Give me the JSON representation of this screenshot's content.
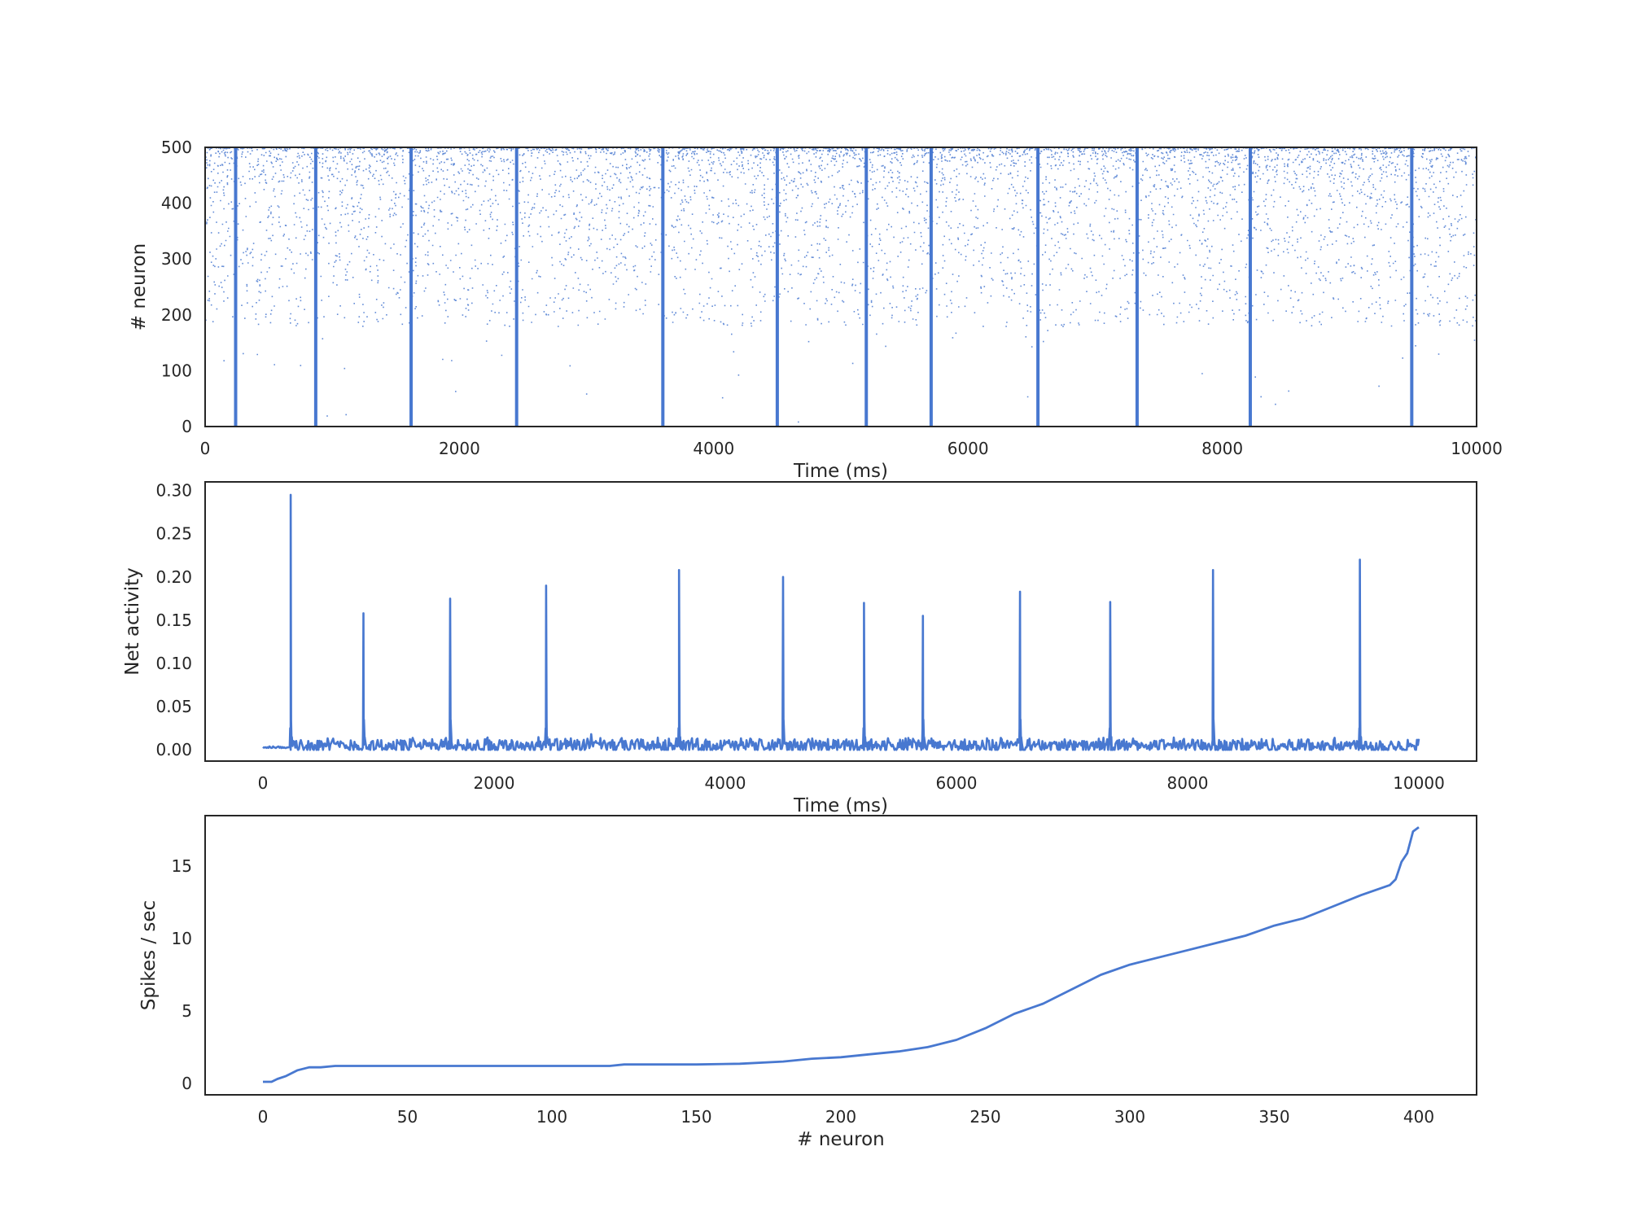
{
  "chart_data": [
    {
      "type": "scatter",
      "xlabel": "Time (ms)",
      "ylabel": "# neuron",
      "xlim": [
        0,
        10000
      ],
      "ylim": [
        0,
        500
      ],
      "xticks": [
        0,
        2000,
        4000,
        6000,
        8000,
        10000
      ],
      "yticks": [
        0,
        100,
        200,
        300,
        400,
        500
      ],
      "grid": false,
      "color": "#4878d0",
      "burst_times": [
        240,
        870,
        1620,
        2450,
        3600,
        4500,
        5200,
        5710,
        6550,
        7330,
        8220,
        9490
      ],
      "description_points": "spike raster: sparse tonic firing concentrated in neurons 200-500, with population bursts across all neurons at burst_times"
    },
    {
      "type": "line",
      "xlabel": "Time (ms)",
      "ylabel": "Net activity",
      "xlim": [
        -500,
        10500
      ],
      "ylim": [
        -0.013,
        0.31
      ],
      "xticks": [
        0,
        2000,
        4000,
        6000,
        8000,
        10000
      ],
      "yticks": [
        0.0,
        0.05,
        0.1,
        0.15,
        0.2,
        0.25,
        0.3
      ],
      "ytick_labels": [
        "0.00",
        "0.05",
        "0.10",
        "0.15",
        "0.20",
        "0.25",
        "0.30"
      ],
      "grid": false,
      "color": "#4878d0",
      "baseline": 0.005,
      "peaks": [
        {
          "x": 240,
          "y": 0.295
        },
        {
          "x": 870,
          "y": 0.158
        },
        {
          "x": 1620,
          "y": 0.175
        },
        {
          "x": 2450,
          "y": 0.19
        },
        {
          "x": 3600,
          "y": 0.208
        },
        {
          "x": 4500,
          "y": 0.2
        },
        {
          "x": 5200,
          "y": 0.17
        },
        {
          "x": 5710,
          "y": 0.155
        },
        {
          "x": 6550,
          "y": 0.183
        },
        {
          "x": 7330,
          "y": 0.171
        },
        {
          "x": 8220,
          "y": 0.208
        },
        {
          "x": 9490,
          "y": 0.22
        }
      ]
    },
    {
      "type": "line",
      "xlabel": "# neuron",
      "ylabel": "Spikes / sec",
      "xlim": [
        -20,
        420
      ],
      "ylim": [
        -0.8,
        18.5
      ],
      "xticks": [
        0,
        50,
        100,
        150,
        200,
        250,
        300,
        350,
        400
      ],
      "yticks": [
        0,
        5,
        10,
        15
      ],
      "grid": false,
      "color": "#4878d0",
      "x": [
        0,
        3,
        5,
        8,
        12,
        16,
        20,
        25,
        50,
        100,
        120,
        125,
        150,
        165,
        180,
        190,
        200,
        210,
        220,
        230,
        240,
        250,
        260,
        270,
        280,
        290,
        300,
        310,
        320,
        330,
        340,
        350,
        360,
        370,
        380,
        390,
        392,
        394,
        396,
        398,
        400
      ],
      "y": [
        0.1,
        0.1,
        0.3,
        0.5,
        0.9,
        1.1,
        1.1,
        1.2,
        1.2,
        1.2,
        1.2,
        1.3,
        1.3,
        1.35,
        1.5,
        1.7,
        1.8,
        2.0,
        2.2,
        2.5,
        3.0,
        3.8,
        4.8,
        5.5,
        6.5,
        7.5,
        8.2,
        8.7,
        9.2,
        9.7,
        10.2,
        10.9,
        11.4,
        12.2,
        13.0,
        13.7,
        14.1,
        15.3,
        15.9,
        17.4,
        17.7
      ]
    }
  ]
}
